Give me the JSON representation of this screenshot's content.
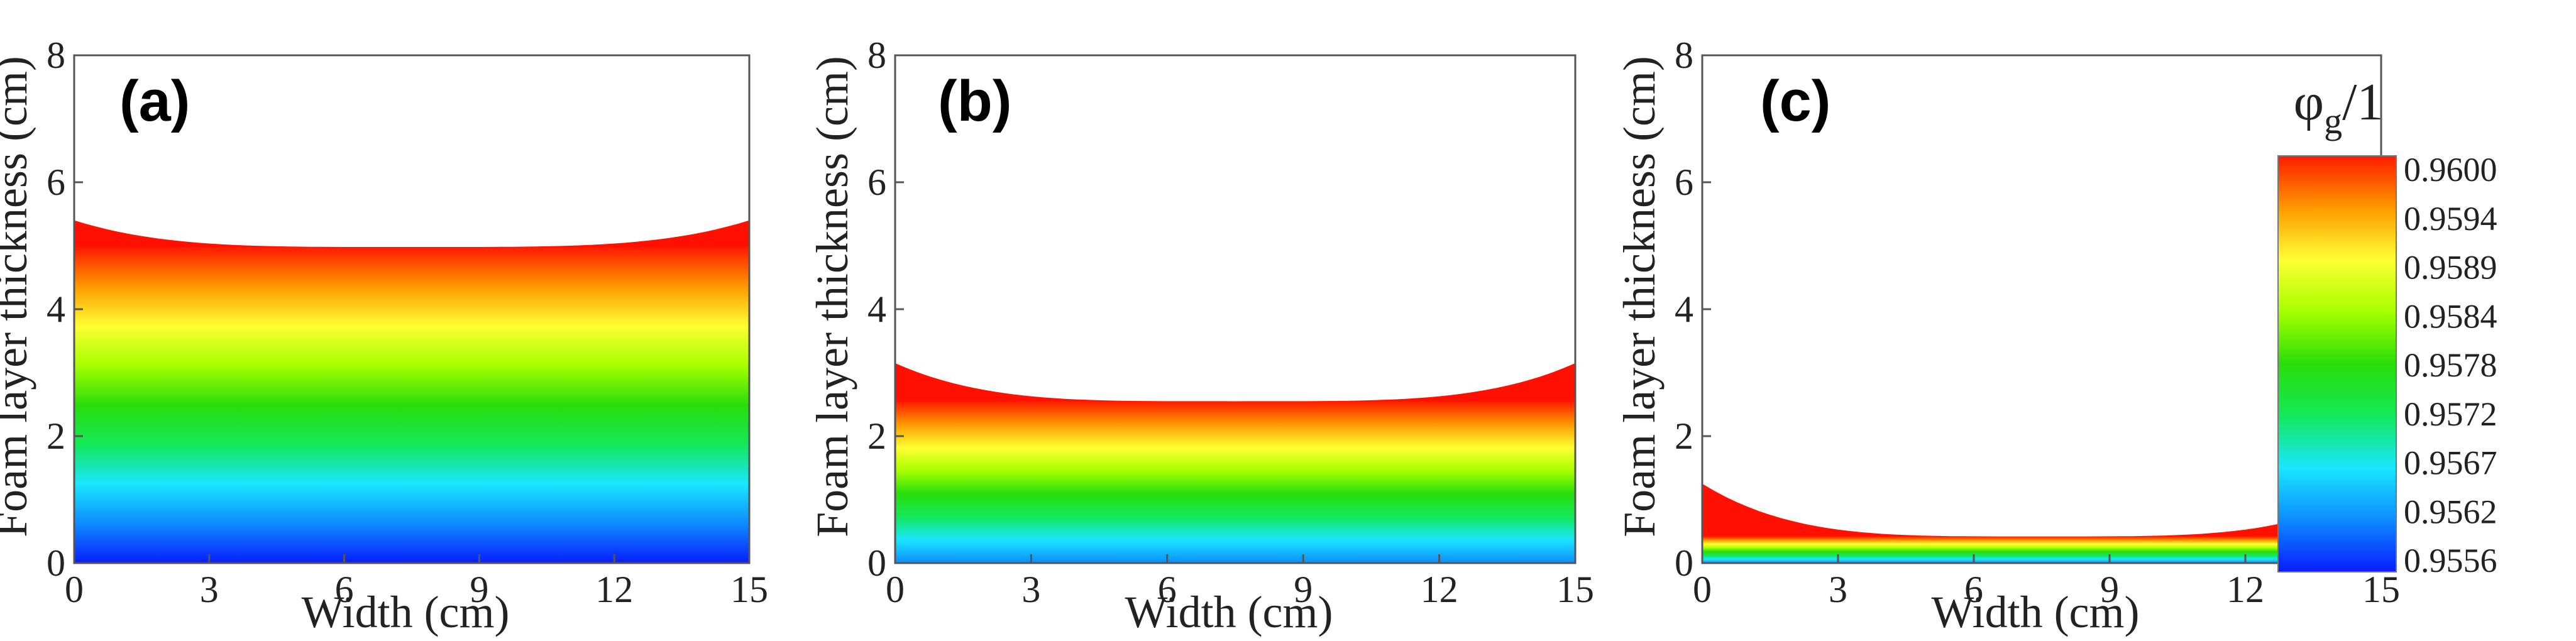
{
  "chart_data": [
    {
      "type": "heatmap",
      "panel": "(a)",
      "xlabel": "Width (cm)",
      "ylabel": "Foam layer thickness (cm)",
      "xlim": [
        0,
        15
      ],
      "ylim": [
        0,
        8
      ],
      "xticks": [
        "0",
        "3",
        "6",
        "9",
        "12",
        "15"
      ],
      "yticks": [
        "0",
        "2",
        "4",
        "6",
        "8"
      ],
      "surface_edge_height": 5.4,
      "surface_center_height": 4.98
    },
    {
      "type": "heatmap",
      "panel": "(b)",
      "xlabel": "Width (cm)",
      "ylabel": "Foam layer thickness (cm)",
      "xlim": [
        0,
        15
      ],
      "ylim": [
        0,
        8
      ],
      "xticks": [
        "0",
        "3",
        "6",
        "9",
        "12",
        "15"
      ],
      "yticks": [
        "0",
        "2",
        "4",
        "6",
        "8"
      ],
      "surface_edge_height": 3.15,
      "surface_center_height": 2.55
    },
    {
      "type": "heatmap",
      "panel": "(c)",
      "xlabel": "Width (cm)",
      "ylabel": "Foam layer thickness (cm)",
      "xlim": [
        0,
        15
      ],
      "ylim": [
        0,
        8
      ],
      "xticks": [
        "0",
        "3",
        "6",
        "9",
        "12",
        "15"
      ],
      "yticks": [
        "0",
        "2",
        "4",
        "6",
        "8"
      ],
      "surface_edge_height": 1.25,
      "surface_center_height": 0.42
    }
  ],
  "colorbar": {
    "title_symbol": "φ",
    "title_subscript": "g",
    "title_suffix": "/1",
    "ticks": [
      "0.9600",
      "0.9594",
      "0.9589",
      "0.9584",
      "0.9578",
      "0.9572",
      "0.9567",
      "0.9562",
      "0.9556"
    ],
    "colors": [
      "#0a1cff",
      "#0d8cff",
      "#19e6ff",
      "#14e85a",
      "#29dd0a",
      "#a6ff00",
      "#ffff33",
      "#ff9900",
      "#ff1a00"
    ]
  }
}
